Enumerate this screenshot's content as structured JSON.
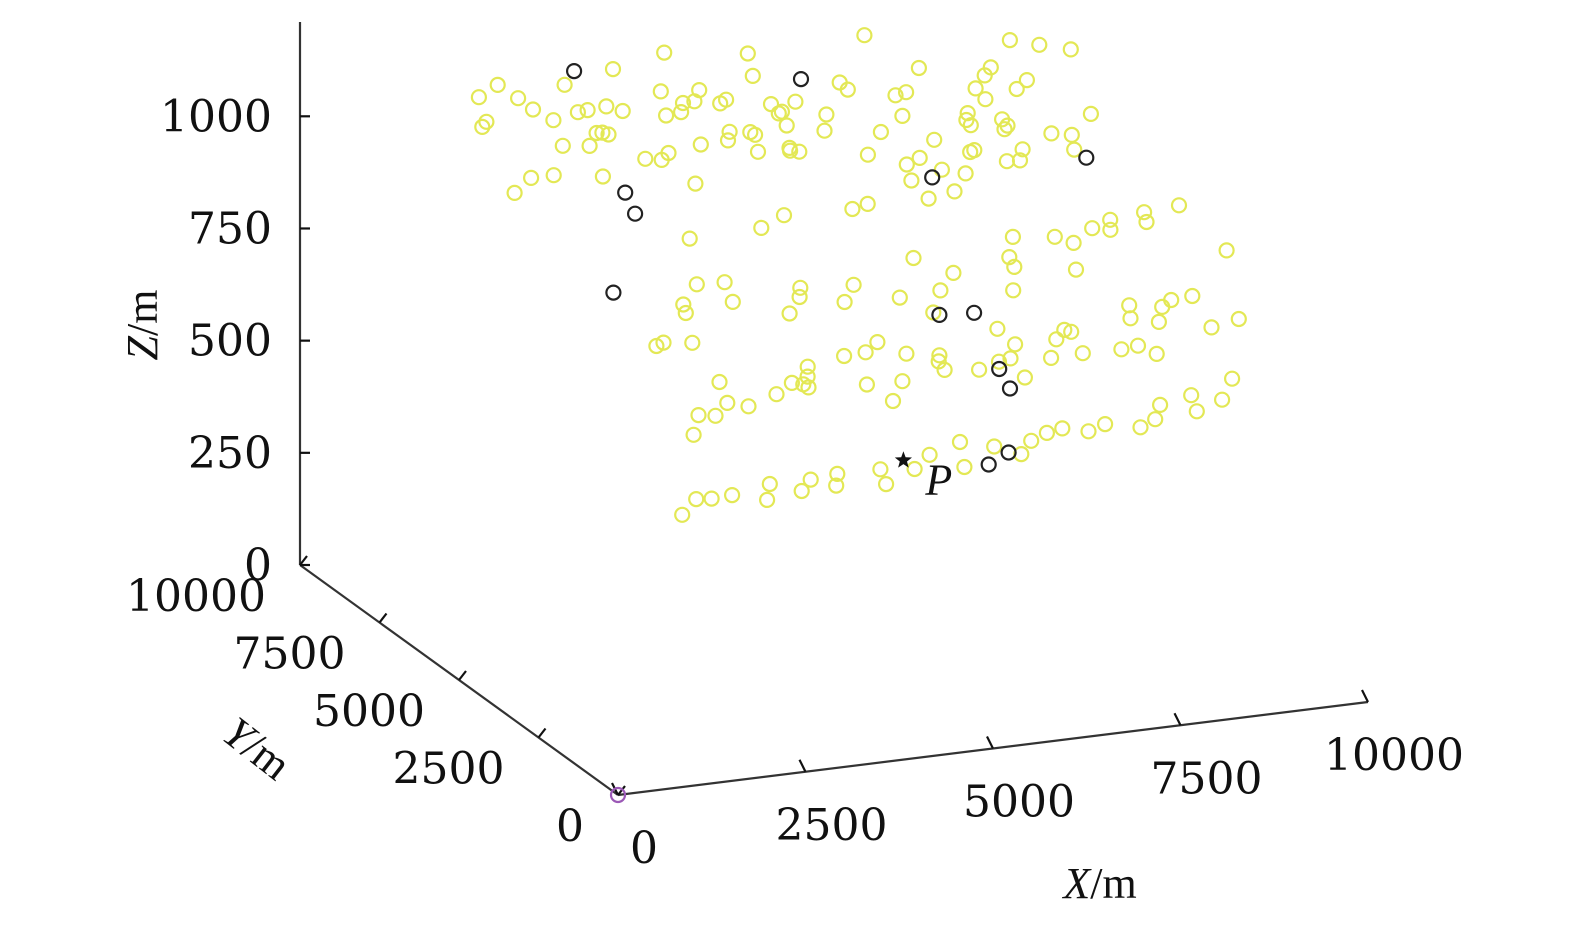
{
  "chart_data": {
    "type": "scatter",
    "projection": "3d",
    "title": "",
    "axes": {
      "x": {
        "label_var": "X",
        "label_unit": "/m",
        "range": [
          0,
          10000
        ],
        "ticks": [
          "0",
          "2500",
          "5000",
          "7500",
          "10000"
        ]
      },
      "y": {
        "label_var": "Y",
        "label_unit": "/m",
        "range": [
          0,
          10000
        ],
        "ticks": [
          "0",
          "2500",
          "5000",
          "7500",
          "10000"
        ]
      },
      "z": {
        "label_var": "Z",
        "label_unit": "/m",
        "range": [
          0,
          1200
        ],
        "ticks": [
          "0",
          "250",
          "500",
          "750",
          "1000"
        ]
      }
    },
    "grid": false,
    "series": [
      {
        "role": "background points",
        "color": "#e3e855",
        "marker": "circle-open",
        "points": [
          [
            2070,
            9020,
            995
          ],
          [
            2330,
            9870,
            1001
          ],
          [
            2330,
            7230,
            1028
          ],
          [
            2590,
            8780,
            1024
          ],
          [
            2590,
            9250,
            1025
          ],
          [
            2590,
            9890,
            1022
          ],
          [
            2980,
            8290,
            1035
          ],
          [
            2980,
            7700,
            1019
          ],
          [
            2980,
            7520,
            1029
          ],
          [
            3120,
            6500,
            1020
          ],
          [
            3380,
            9650,
            1018
          ],
          [
            3360,
            6550,
            1010
          ],
          [
            3910,
            9380,
            1056
          ],
          [
            4060,
            7530,
            1072
          ],
          [
            4060,
            8230,
            1062
          ],
          [
            4320,
            6680,
            1046
          ],
          [
            4330,
            7810,
            1056
          ],
          [
            4470,
            7330,
            1073
          ],
          [
            4580,
            6640,
            1042
          ],
          [
            4720,
            6820,
            1024
          ],
          [
            4720,
            5740,
            1050
          ],
          [
            4830,
            9940,
            1045
          ],
          [
            4830,
            5690,
            1042
          ],
          [
            5120,
            6770,
            1039
          ],
          [
            5120,
            7020,
            1053
          ],
          [
            5120,
            6920,
            1062
          ],
          [
            5380,
            8450,
            1058
          ],
          [
            5380,
            4830,
            1068
          ],
          [
            5510,
            3770,
            1062
          ],
          [
            5640,
            9220,
            1063
          ],
          [
            5640,
            4220,
            1072
          ],
          [
            5770,
            4120,
            1089
          ],
          [
            5900,
            3730,
            1080
          ],
          [
            6040,
            7020,
            1087
          ],
          [
            6170,
            3620,
            1072
          ],
          [
            6170,
            4610,
            1096
          ],
          [
            6430,
            4090,
            1090
          ],
          [
            6430,
            3960,
            1101
          ],
          [
            6690,
            3550,
            1092
          ],
          [
            6820,
            5130,
            1100
          ],
          [
            6950,
            3750,
            1078
          ],
          [
            7070,
            3950,
            1090
          ],
          [
            7220,
            9280,
            1068
          ],
          [
            7350,
            5180,
            1066
          ],
          [
            7480,
            8180,
            1046
          ],
          [
            7610,
            5700,
            1042
          ],
          [
            7740,
            7010,
            1055
          ],
          [
            8000,
            5240,
            1040
          ],
          [
            8260,
            7950,
            1025
          ],
          [
            8390,
            7250,
            1028
          ],
          [
            8520,
            8370,
            1016
          ],
          [
            8780,
            7850,
            1009
          ],
          [
            9040,
            6450,
            1000
          ],
          [
            9300,
            9610,
            997
          ],
          [
            9560,
            9300,
            997
          ],
          [
            9820,
            8920,
            1001
          ],
          [
            2140,
            8300,
            872
          ],
          [
            2410,
            9950,
            929
          ],
          [
            2530,
            8700,
            877
          ],
          [
            2590,
            8130,
            911
          ],
          [
            2860,
            7220,
            949
          ],
          [
            3120,
            8250,
            959
          ],
          [
            3120,
            9390,
            958
          ],
          [
            3380,
            8270,
            978
          ],
          [
            3640,
            9540,
            962
          ],
          [
            3780,
            6480,
            952
          ],
          [
            3910,
            9590,
            962
          ],
          [
            4040,
            7940,
            940
          ],
          [
            4180,
            9710,
            940
          ],
          [
            4310,
            7560,
            973
          ],
          [
            4440,
            8960,
            963
          ],
          [
            4570,
            7320,
            989
          ],
          [
            4700,
            9100,
            958
          ],
          [
            4830,
            6990,
            975
          ],
          [
            5090,
            9450,
            981
          ],
          [
            5220,
            6900,
            974
          ],
          [
            5350,
            9220,
            966
          ],
          [
            5610,
            8420,
            992
          ],
          [
            5870,
            7350,
            982
          ],
          [
            6130,
            8880,
            963
          ],
          [
            6260,
            8210,
            966
          ],
          [
            6520,
            7110,
            978
          ],
          [
            6780,
            9020,
            985
          ],
          [
            7040,
            7660,
            975
          ],
          [
            7300,
            8490,
            973
          ],
          [
            7560,
            8770,
            960
          ],
          [
            7820,
            7350,
            954
          ],
          [
            8080,
            8060,
            939
          ],
          [
            8340,
            7590,
            944
          ],
          [
            8600,
            8730,
            925
          ],
          [
            8860,
            6550,
            919
          ],
          [
            9120,
            7240,
            911
          ],
          [
            1890,
            3250,
            795
          ],
          [
            2150,
            3640,
            777
          ],
          [
            2420,
            3370,
            785
          ],
          [
            2680,
            4190,
            804
          ],
          [
            2940,
            4880,
            782
          ],
          [
            3200,
            5070,
            812
          ],
          [
            3460,
            4550,
            794
          ],
          [
            3720,
            5420,
            788
          ],
          [
            3980,
            3990,
            786
          ],
          [
            4240,
            4290,
            802
          ],
          [
            4500,
            4880,
            787
          ],
          [
            4760,
            4100,
            790
          ],
          [
            5020,
            4430,
            806
          ],
          [
            5280,
            3590,
            815
          ],
          [
            5540,
            3150,
            799
          ],
          [
            5800,
            3540,
            823
          ],
          [
            6060,
            5000,
            815
          ],
          [
            6320,
            4360,
            809
          ],
          [
            6580,
            3090,
            830
          ],
          [
            6840,
            3670,
            847
          ],
          [
            7100,
            4440,
            824
          ],
          [
            7360,
            4940,
            838
          ],
          [
            7620,
            3570,
            830
          ],
          [
            7880,
            4850,
            832
          ],
          [
            8140,
            4870,
            812
          ],
          [
            8400,
            4900,
            838
          ],
          [
            8660,
            4940,
            827
          ],
          [
            8920,
            5560,
            812
          ],
          [
            9180,
            5030,
            829
          ],
          [
            9440,
            5720,
            810
          ],
          [
            9700,
            3740,
            821
          ],
          [
            9960,
            5850,
            808
          ],
          [
            1530,
            1230,
            708
          ],
          [
            1790,
            1690,
            723
          ],
          [
            2050,
            1770,
            712
          ],
          [
            2310,
            2010,
            723
          ],
          [
            2570,
            2870,
            720
          ],
          [
            2830,
            1690,
            748
          ],
          [
            3090,
            1820,
            761
          ],
          [
            3350,
            1910,
            741
          ],
          [
            3610,
            2550,
            749
          ],
          [
            3870,
            1300,
            768
          ],
          [
            4130,
            2630,
            758
          ],
          [
            4390,
            1410,
            759
          ],
          [
            4650,
            2810,
            769
          ],
          [
            4910,
            2510,
            753
          ],
          [
            5170,
            2110,
            751
          ],
          [
            5430,
            1450,
            761
          ],
          [
            5690,
            1440,
            774
          ],
          [
            5950,
            1690,
            763
          ],
          [
            6210,
            2160,
            765
          ],
          [
            6470,
            1640,
            756
          ],
          [
            6730,
            2090,
            769
          ],
          [
            6990,
            2450,
            766
          ],
          [
            7250,
            1270,
            778
          ],
          [
            7510,
            1360,
            776
          ],
          [
            7770,
            2210,
            788
          ],
          [
            8030,
            1930,
            789
          ],
          [
            8290,
            2440,
            791
          ],
          [
            8550,
            2770,
            784
          ],
          [
            8810,
            2720,
            790
          ],
          [
            9070,
            1870,
            777
          ],
          [
            1220,
            860,
            555
          ],
          [
            1480,
            1030,
            576
          ],
          [
            1740,
            1160,
            565
          ],
          [
            2000,
            1130,
            569
          ],
          [
            2260,
            640,
            578
          ],
          [
            2520,
            1170,
            581
          ],
          [
            2780,
            780,
            580
          ],
          [
            3040,
            1110,
            583
          ],
          [
            3300,
            920,
            574
          ],
          [
            3560,
            1500,
            565
          ],
          [
            3820,
            580,
            584
          ],
          [
            4080,
            1370,
            571
          ],
          [
            4340,
            910,
            590
          ],
          [
            4600,
            1050,
            609
          ],
          [
            4860,
            570,
            601
          ],
          [
            5120,
            1320,
            613
          ],
          [
            5380,
            860,
            621
          ],
          [
            5640,
            620,
            611
          ],
          [
            5900,
            920,
            620
          ],
          [
            6160,
            1040,
            626
          ],
          [
            6420,
            1170,
            624
          ],
          [
            6680,
            960,
            623
          ],
          [
            6940,
            1050,
            629
          ],
          [
            7200,
            550,
            642
          ],
          [
            7460,
            700,
            647
          ],
          [
            7720,
            1160,
            650
          ],
          [
            7980,
            620,
            658
          ],
          [
            8240,
            1410,
            648
          ],
          [
            8500,
            1050,
            651
          ],
          [
            8760,
            1350,
            677
          ],
          [
            3500,
            6000,
            860
          ],
          [
            4200,
            5400,
            900
          ],
          [
            4800,
            6100,
            880
          ],
          [
            5500,
            5600,
            905
          ],
          [
            6000,
            6300,
            870
          ],
          [
            6600,
            5800,
            895
          ],
          [
            7200,
            6400,
            868
          ],
          [
            3800,
            3000,
            700
          ],
          [
            4700,
            3300,
            720
          ],
          [
            5600,
            3100,
            705
          ],
          [
            6500,
            3400,
            730
          ],
          [
            7400,
            3200,
            715
          ],
          [
            8300,
            3500,
            740
          ],
          [
            2800,
            2500,
            680
          ],
          [
            3700,
            2900,
            690
          ],
          [
            4600,
            2200,
            670
          ],
          [
            5500,
            2700,
            695
          ],
          [
            6400,
            2300,
            680
          ],
          [
            7300,
            2600,
            700
          ],
          [
            8200,
            2400,
            690
          ],
          [
            9100,
            2800,
            710
          ]
        ]
      },
      {
        "role": "selected points",
        "color": "#222222",
        "marker": "circle-open",
        "points": [
          [
            3400,
            9400,
            1061
          ],
          [
            3390,
            7770,
            874
          ],
          [
            3680,
            8140,
            802
          ],
          [
            2220,
            5380,
            798
          ],
          [
            5540,
            7310,
            1106
          ],
          [
            7250,
            7220,
            856
          ],
          [
            9280,
            7160,
            861
          ],
          [
            6130,
            4350,
            720
          ],
          [
            6100,
            2400,
            700
          ],
          [
            6380,
            3850,
            745
          ],
          [
            6270,
            2460,
            650
          ],
          [
            5430,
            1150,
            565
          ],
          [
            5810,
            1420,
            570
          ]
        ]
      },
      {
        "role": "origin",
        "color": "#9b59b6",
        "marker": "circle-open",
        "points": [
          [
            0,
            0,
            0
          ]
        ]
      }
    ],
    "annotations": [
      {
        "text": "P",
        "marker": "star",
        "x": 5620,
        "y": 4280,
        "z": 410
      }
    ]
  }
}
